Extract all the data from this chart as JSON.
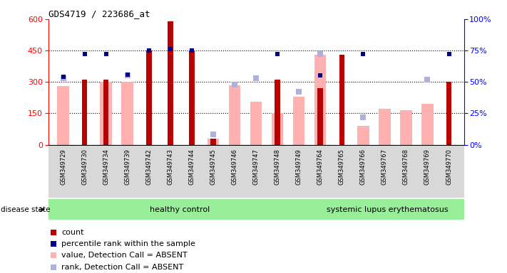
{
  "title": "GDS4719 / 223686_at",
  "samples": [
    "GSM349729",
    "GSM349730",
    "GSM349734",
    "GSM349739",
    "GSM349742",
    "GSM349743",
    "GSM349744",
    "GSM349745",
    "GSM349746",
    "GSM349747",
    "GSM349748",
    "GSM349749",
    "GSM349764",
    "GSM349765",
    "GSM349766",
    "GSM349767",
    "GSM349768",
    "GSM349769",
    "GSM349770"
  ],
  "count": [
    0,
    310,
    310,
    0,
    450,
    590,
    450,
    30,
    0,
    0,
    310,
    0,
    270,
    430,
    0,
    0,
    0,
    0,
    300
  ],
  "percentile_rank": [
    54,
    72,
    72,
    56,
    75,
    76,
    75,
    null,
    null,
    null,
    72,
    null,
    55,
    null,
    72,
    null,
    null,
    null,
    72
  ],
  "value_absent": [
    280,
    0,
    300,
    300,
    0,
    0,
    0,
    30,
    285,
    205,
    150,
    230,
    430,
    0,
    90,
    170,
    165,
    195,
    0
  ],
  "rank_absent": [
    53,
    null,
    null,
    55,
    null,
    null,
    null,
    8,
    48,
    53,
    null,
    42,
    72,
    null,
    22,
    null,
    null,
    52,
    null
  ],
  "healthy_count": 12,
  "ylim_left": [
    0,
    600
  ],
  "ylim_right": [
    0,
    100
  ],
  "yticks_left": [
    0,
    150,
    300,
    450,
    600
  ],
  "yticks_right": [
    0,
    25,
    50,
    75,
    100
  ],
  "count_color": "#bb0000",
  "percentile_color": "#000088",
  "value_absent_color": "#ffb0b0",
  "rank_absent_color": "#b0b0dd",
  "healthy_bg": "#99ee99",
  "lupus_bg": "#99ee99",
  "legend_items": [
    {
      "label": "count",
      "color": "#bb0000"
    },
    {
      "label": "percentile rank within the sample",
      "color": "#000088"
    },
    {
      "label": "value, Detection Call = ABSENT",
      "color": "#ffb0b0"
    },
    {
      "label": "rank, Detection Call = ABSENT",
      "color": "#b0b0dd"
    }
  ]
}
